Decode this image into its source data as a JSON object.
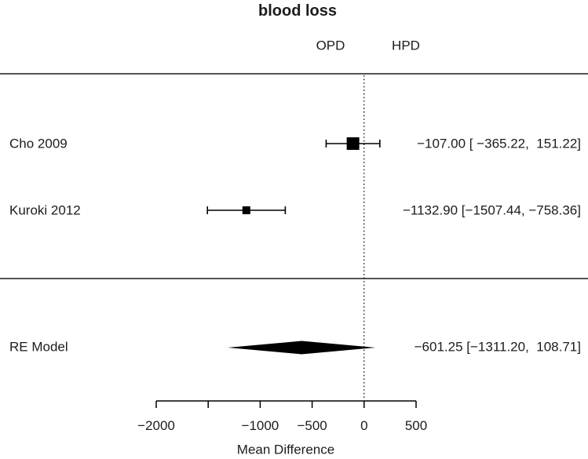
{
  "chart_data": {
    "type": "forest",
    "title": "blood loss",
    "xlabel": "Mean Difference",
    "group_headers": [
      {
        "label": "OPD",
        "x_value": -323
      },
      {
        "label": "HPD",
        "x_value": 402
      }
    ],
    "zero_reference_line": 0,
    "x_axis_range": [
      -2000,
      500
    ],
    "x_ticks": [
      {
        "value": -2000,
        "label": "−2000"
      },
      {
        "value": -1500,
        "label": ""
      },
      {
        "value": -1000,
        "label": "−1000"
      },
      {
        "value": -500,
        "label": "−500"
      },
      {
        "value": 0,
        "label": "0"
      },
      {
        "value": 500,
        "label": "500"
      }
    ],
    "studies": [
      {
        "label": "Cho 2009",
        "estimate": -107.0,
        "ci_lower": -365.22,
        "ci_upper": 151.22,
        "annotation": "−107.00 [ −365.22,  151.22]",
        "marker_size": 16
      },
      {
        "label": "Kuroki 2012",
        "estimate": -1132.9,
        "ci_lower": -1507.44,
        "ci_upper": -758.36,
        "annotation": "−1132.90 [−1507.44, −758.36]",
        "marker_size": 10
      }
    ],
    "summary": {
      "label": "RE Model",
      "estimate": -601.25,
      "ci_lower": -1311.2,
      "ci_upper": 108.71,
      "annotation": "−601.25 [−1311.20,  108.71]"
    },
    "colors": {
      "marks": "#000000",
      "rules": "#3c3c3c",
      "text": "#1c1c1c",
      "background": "#ffffff"
    }
  }
}
